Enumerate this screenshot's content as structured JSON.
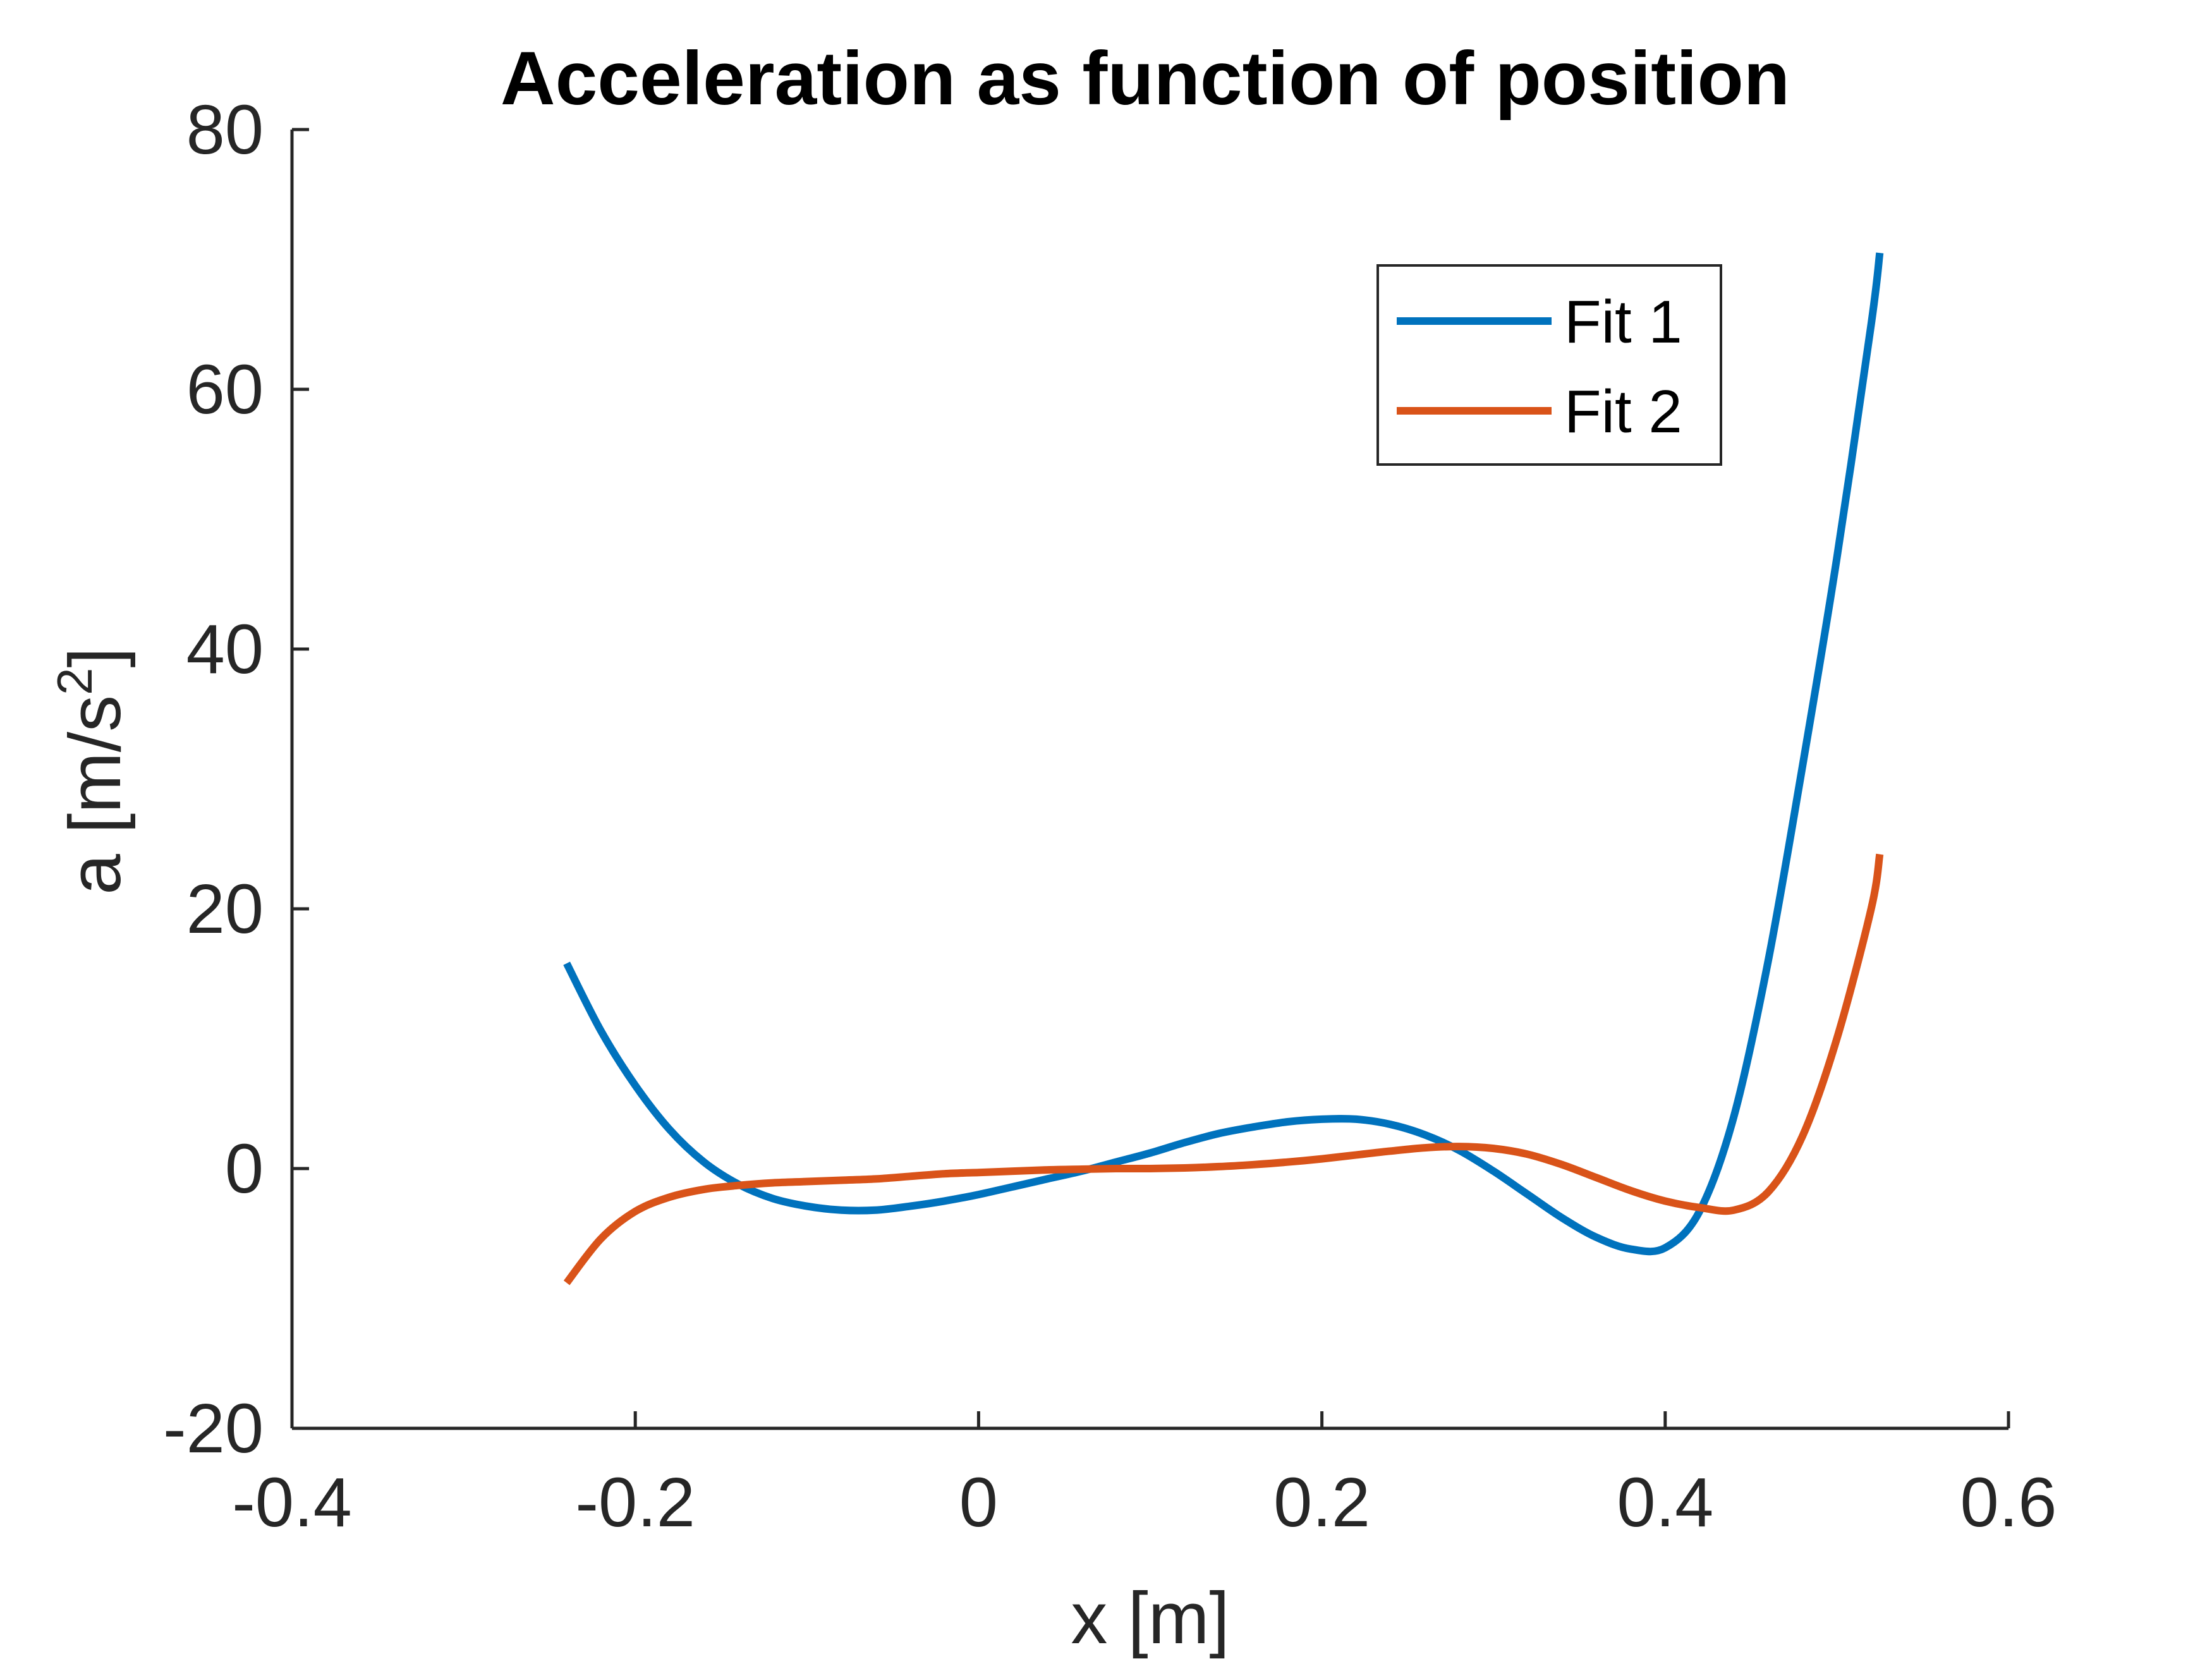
{
  "chart_data": {
    "type": "line",
    "title": "Acceleration as function of position",
    "xlabel": "x [m]",
    "ylabel_main": "a [m/s",
    "ylabel_sup": "2",
    "ylabel_close": "]",
    "xlim": [
      -0.4,
      0.6
    ],
    "ylim": [
      -20,
      80
    ],
    "xticks": [
      -0.4,
      -0.2,
      0,
      0.2,
      0.4,
      0.6
    ],
    "xtick_labels": [
      "-0.4",
      "-0.2",
      "0",
      "0.2",
      "0.4",
      "0.6"
    ],
    "yticks": [
      -20,
      0,
      20,
      40,
      60,
      80
    ],
    "ytick_labels": [
      "-20",
      "0",
      "20",
      "40",
      "60",
      "80"
    ],
    "grid": false,
    "legend_position": "top-right",
    "series": [
      {
        "name": "Fit 1",
        "color": "#0072BD",
        "x": [
          -0.24,
          -0.22,
          -0.2,
          -0.18,
          -0.16,
          -0.14,
          -0.12,
          -0.1,
          -0.08,
          -0.06,
          -0.04,
          -0.02,
          0.0,
          0.02,
          0.04,
          0.06,
          0.08,
          0.1,
          0.12,
          0.14,
          0.16,
          0.18,
          0.2,
          0.22,
          0.24,
          0.26,
          0.28,
          0.3,
          0.32,
          0.34,
          0.36,
          0.38,
          0.4,
          0.42,
          0.44,
          0.46,
          0.48,
          0.5,
          0.52,
          0.525
        ],
        "y": [
          15.8,
          10.6,
          6.4,
          3.0,
          0.5,
          -1.2,
          -2.3,
          -2.9,
          -3.2,
          -3.2,
          -2.9,
          -2.5,
          -2.0,
          -1.4,
          -0.8,
          -0.2,
          0.5,
          1.2,
          2.0,
          2.7,
          3.2,
          3.6,
          3.8,
          3.8,
          3.4,
          2.6,
          1.4,
          -0.2,
          -2.0,
          -3.8,
          -5.3,
          -6.2,
          -6.1,
          -3.3,
          4.0,
          16.0,
          31.0,
          47.0,
          65.0,
          70.5
        ]
      },
      {
        "name": "Fit 2",
        "color": "#D95319",
        "x": [
          -0.24,
          -0.22,
          -0.2,
          -0.18,
          -0.16,
          -0.14,
          -0.12,
          -0.1,
          -0.08,
          -0.06,
          -0.04,
          -0.02,
          0.0,
          0.02,
          0.04,
          0.06,
          0.08,
          0.1,
          0.12,
          0.14,
          0.16,
          0.18,
          0.2,
          0.22,
          0.24,
          0.26,
          0.28,
          0.3,
          0.32,
          0.34,
          0.36,
          0.38,
          0.4,
          0.42,
          0.44,
          0.46,
          0.48,
          0.5,
          0.52,
          0.525
        ],
        "y": [
          -8.8,
          -5.4,
          -3.3,
          -2.2,
          -1.6,
          -1.3,
          -1.1,
          -1.0,
          -0.9,
          -0.8,
          -0.6,
          -0.4,
          -0.3,
          -0.2,
          -0.1,
          -0.05,
          0.0,
          0.0,
          0.05,
          0.15,
          0.3,
          0.5,
          0.75,
          1.05,
          1.35,
          1.6,
          1.7,
          1.55,
          1.1,
          0.3,
          -0.7,
          -1.7,
          -2.5,
          -3.0,
          -3.2,
          -1.8,
          2.5,
          10.0,
          20.0,
          24.2
        ]
      }
    ]
  }
}
